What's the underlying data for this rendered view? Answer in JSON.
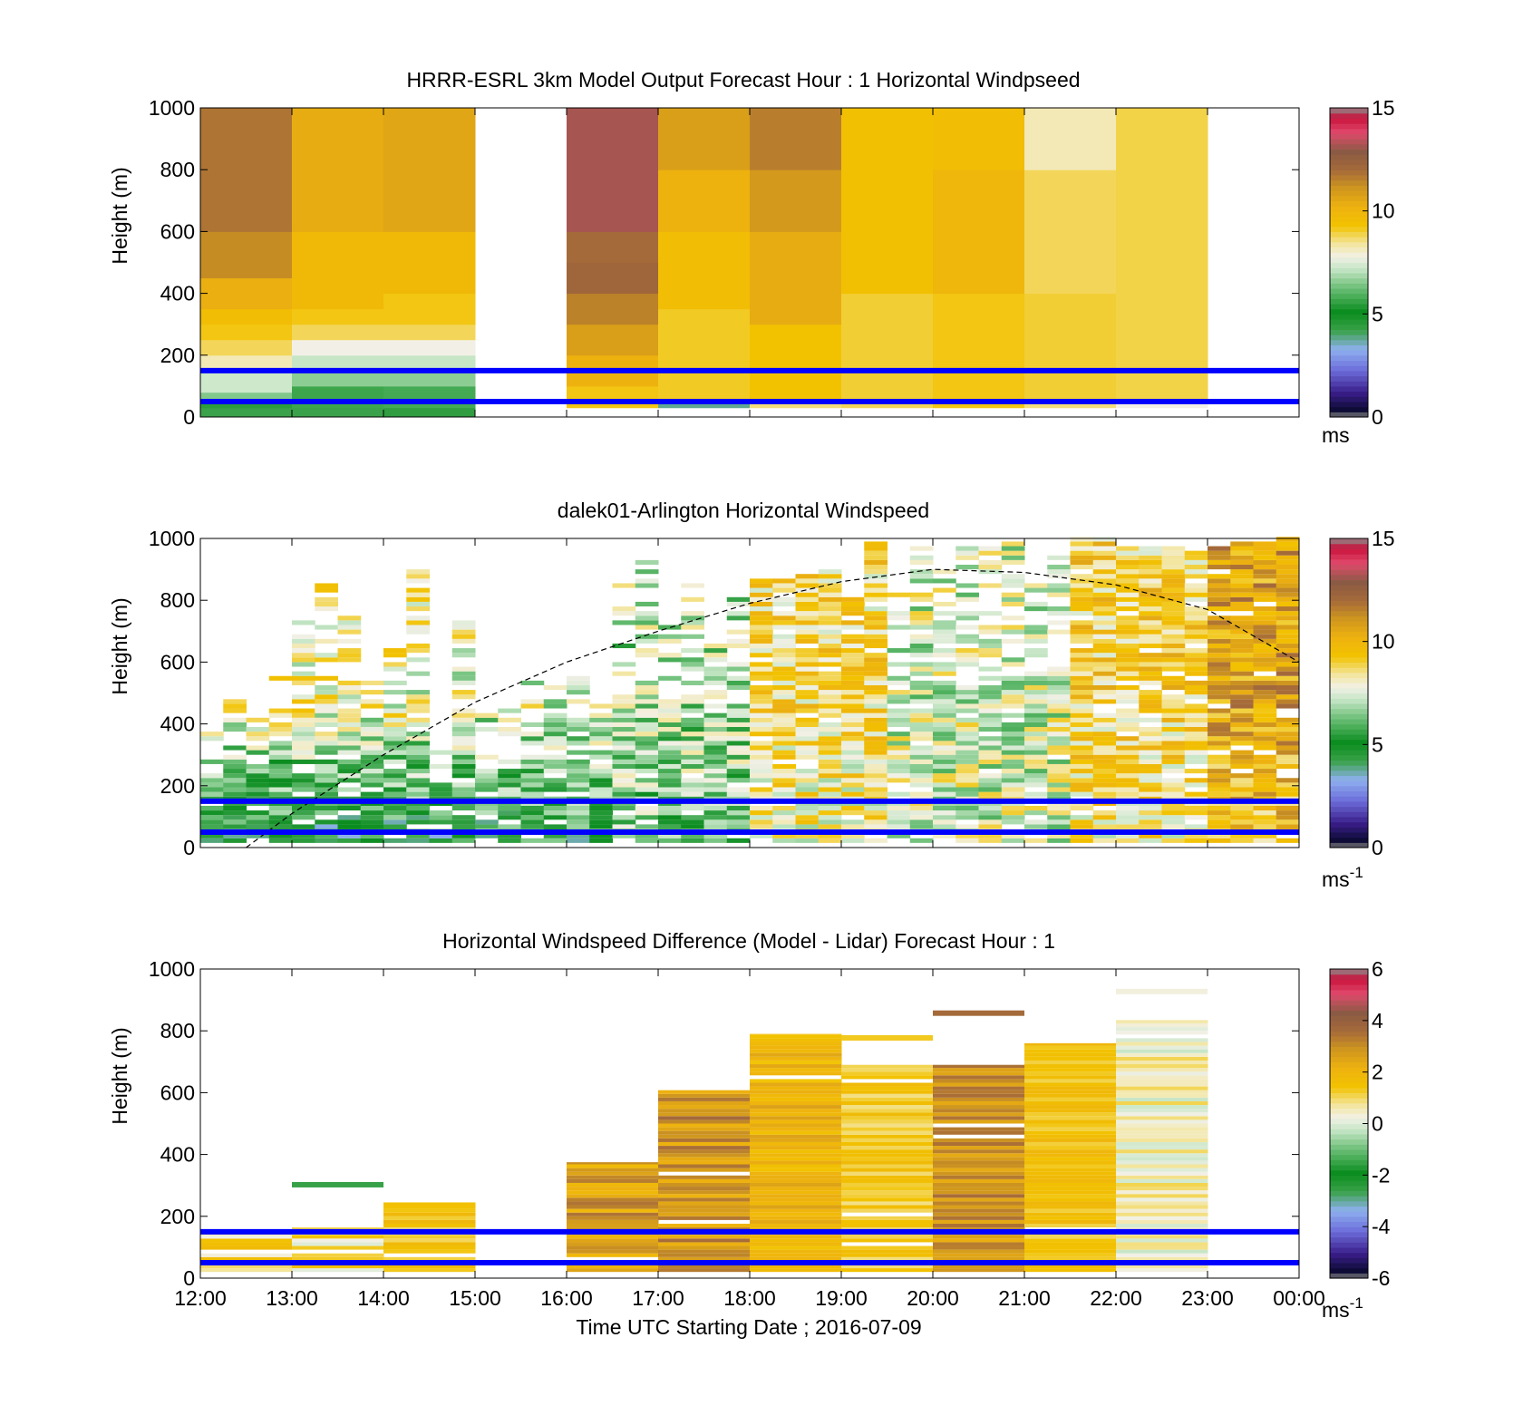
{
  "panels": [
    {
      "title": "HRRR-ESRL 3km Model Output   Forecast Hour : 1 Horizontal Windpseed",
      "ylabel": "Height (m)",
      "colorbar_unit": "ms",
      "colorbar_unit_sup": ""
    },
    {
      "title": "dalek01-Arlington  Horizontal Windspeed",
      "ylabel": "Height (m)",
      "colorbar_unit": "ms",
      "colorbar_unit_sup": "-1"
    },
    {
      "title": "Horizontal Windspeed Difference (Model - Lidar) Forecast Hour : 1",
      "ylabel": "Height (m)",
      "colorbar_unit": "ms",
      "colorbar_unit_sup": "-1"
    }
  ],
  "xlabel": "Time UTC  Starting Date ; 2016-07-09",
  "colors": {
    "reference_lines": "#0000ff",
    "frame": "#000000"
  },
  "chart_data": [
    {
      "type": "heatmap",
      "title": "HRRR-ESRL 3km Model Output   Forecast Hour : 1 Horizontal Windpseed",
      "ylabel": "Height (m)",
      "ylim": [
        0,
        1000
      ],
      "yticks": [
        "0",
        "200",
        "400",
        "600",
        "800",
        "1000"
      ],
      "x_hours": [
        12,
        13,
        14,
        15,
        16,
        17,
        18,
        19,
        20,
        21,
        22,
        23,
        24
      ],
      "clim": [
        0,
        15
      ],
      "cticks": [
        "0",
        "5",
        "10",
        "15"
      ],
      "reference_heights_m": [
        50,
        150
      ],
      "columns": [
        {
          "start_hour": 12,
          "bands": [
            [
              0,
              30,
              4.2
            ],
            [
              30,
              60,
              5.5
            ],
            [
              60,
              80,
              6.5
            ],
            [
              80,
              150,
              7.3
            ],
            [
              150,
              200,
              8.2
            ],
            [
              200,
              250,
              8.8
            ],
            [
              250,
              300,
              9.2
            ],
            [
              300,
              350,
              9.6
            ],
            [
              350,
              450,
              10.3
            ],
            [
              450,
              600,
              11.3
            ],
            [
              600,
              1000,
              11.8
            ]
          ]
        },
        {
          "start_hour": 13,
          "bands": [
            [
              0,
              30,
              4.2
            ],
            [
              30,
              100,
              5.7
            ],
            [
              100,
              150,
              6.6
            ],
            [
              150,
              200,
              7.2
            ],
            [
              200,
              250,
              7.8
            ],
            [
              250,
              300,
              8.8
            ],
            [
              300,
              350,
              9.2
            ],
            [
              350,
              600,
              9.8
            ],
            [
              600,
              1000,
              10.4
            ]
          ]
        },
        {
          "start_hour": 14,
          "bands": [
            [
              0,
              30,
              4.4
            ],
            [
              30,
              100,
              5.8
            ],
            [
              100,
              150,
              6.6
            ],
            [
              150,
              200,
              7.2
            ],
            [
              200,
              250,
              7.8
            ],
            [
              250,
              300,
              8.8
            ],
            [
              300,
              400,
              9.2
            ],
            [
              400,
              600,
              9.8
            ],
            [
              600,
              1000,
              10.6
            ]
          ]
        },
        {
          "start_hour": 16,
          "bands": [
            [
              30,
              100,
              9.2
            ],
            [
              100,
              200,
              10.2
            ],
            [
              200,
              300,
              10.8
            ],
            [
              300,
              400,
              11.5
            ],
            [
              400,
              500,
              12.2
            ],
            [
              500,
              600,
              12.0
            ],
            [
              600,
              1000,
              13.2
            ]
          ]
        },
        {
          "start_hour": 17,
          "bands": [
            [
              30,
              60,
              3.8
            ],
            [
              60,
              350,
              9.1
            ],
            [
              350,
              600,
              9.6
            ],
            [
              600,
              800,
              10.2
            ],
            [
              800,
              1000,
              10.8
            ]
          ]
        },
        {
          "start_hour": 18,
          "bands": [
            [
              30,
              60,
              8.6
            ],
            [
              60,
              300,
              9.3
            ],
            [
              300,
              600,
              10.4
            ],
            [
              600,
              800,
              11.0
            ],
            [
              800,
              1000,
              11.6
            ]
          ]
        },
        {
          "start_hour": 19,
          "bands": [
            [
              30,
              60,
              8.8
            ],
            [
              60,
              400,
              9.0
            ],
            [
              400,
              1000,
              9.4
            ]
          ]
        },
        {
          "start_hour": 20,
          "bands": [
            [
              30,
              400,
              9.2
            ],
            [
              400,
              800,
              10.0
            ],
            [
              800,
              1000,
              9.6
            ]
          ]
        },
        {
          "start_hour": 21,
          "bands": [
            [
              30,
              60,
              8.6
            ],
            [
              60,
              400,
              9.0
            ],
            [
              400,
              800,
              8.8
            ],
            [
              800,
              1000,
              8.2
            ]
          ]
        },
        {
          "start_hour": 22,
          "bands": [
            [
              30,
              60,
              7.8
            ],
            [
              60,
              1000,
              8.9
            ]
          ]
        }
      ]
    },
    {
      "type": "heatmap",
      "title": "dalek01-Arlington  Horizontal Windspeed",
      "ylabel": "Height (m)",
      "ylim": [
        0,
        1000
      ],
      "yticks": [
        "0",
        "200",
        "400",
        "600",
        "800",
        "1000"
      ],
      "x_hours": [
        12,
        13,
        14,
        15,
        16,
        17,
        18,
        19,
        20,
        21,
        22,
        23,
        24
      ],
      "clim": [
        0,
        15
      ],
      "cticks": [
        "0",
        "5",
        "10",
        "15"
      ],
      "reference_heights_m": [
        50,
        150
      ],
      "profile_step_hours": 0.25,
      "profile_bin_m": 15,
      "regimes": [
        {
          "from_hour": 12.0,
          "to_hour": 15.0,
          "top_m": [
            380,
            900
          ],
          "near_surface_speed": 4.5,
          "aloft_speed": 8.0
        },
        {
          "from_hour": 15.0,
          "to_hour": 16.5,
          "top_m": [
            350,
            600
          ],
          "near_surface_speed": 5.0,
          "aloft_speed": 7.5
        },
        {
          "from_hour": 16.5,
          "to_hour": 18.0,
          "top_m": [
            650,
            950
          ],
          "near_surface_speed": 6.5,
          "aloft_speed": 7.0
        },
        {
          "from_hour": 18.0,
          "to_hour": 19.5,
          "top_m": [
            800,
            1000
          ],
          "near_surface_speed": 8.0,
          "aloft_speed": 8.8
        },
        {
          "from_hour": 19.5,
          "to_hour": 21.5,
          "top_m": [
            900,
            1000
          ],
          "near_surface_speed": 7.5,
          "aloft_speed": 7.5
        },
        {
          "from_hour": 21.5,
          "to_hour": 23.0,
          "top_m": [
            950,
            1000
          ],
          "near_surface_speed": 8.5,
          "aloft_speed": 9.0
        },
        {
          "from_hour": 23.0,
          "to_hour": 23.9,
          "top_m": [
            980,
            1000
          ],
          "near_surface_speed": 9.5,
          "aloft_speed": 10.5
        }
      ],
      "boundary_layer_curve": {
        "style": "dashed",
        "x_hours": [
          12.5,
          13.0,
          14.0,
          15.0,
          16.0,
          17.0,
          18.0,
          19.0,
          20.0,
          21.0,
          22.0,
          23.0,
          24.0
        ],
        "height_m": [
          0,
          110,
          300,
          470,
          600,
          700,
          790,
          860,
          900,
          890,
          850,
          770,
          600
        ]
      }
    },
    {
      "type": "heatmap",
      "title": "Horizontal Windspeed Difference (Model - Lidar) Forecast Hour : 1",
      "ylabel": "Height (m)",
      "xlabel": "Time UTC  Starting Date ; 2016-07-09",
      "ylim": [
        0,
        1000
      ],
      "yticks": [
        "0",
        "200",
        "400",
        "600",
        "800",
        "1000"
      ],
      "x_hours": [
        12,
        13,
        14,
        15,
        16,
        17,
        18,
        19,
        20,
        21,
        22,
        23,
        24
      ],
      "xticks": [
        "12:00",
        "13:00",
        "14:00",
        "15:00",
        "16:00",
        "17:00",
        "18:00",
        "19:00",
        "20:00",
        "21:00",
        "22:00",
        "23:00",
        "00:00"
      ],
      "clim": [
        -6,
        6
      ],
      "cticks": [
        "-6",
        "-4",
        "-2",
        "0",
        "2",
        "4",
        "6"
      ],
      "reference_heights_m": [
        50,
        150
      ],
      "columns": [
        {
          "start_hour": 12,
          "top_m": 160,
          "mean_diff": 1.0,
          "spread": 0.8
        },
        {
          "start_hour": 13,
          "top_m": 180,
          "mean_diff": 0.8,
          "spread": 0.9
        },
        {
          "start_hour": 14,
          "top_m": 245,
          "mean_diff": 1.4,
          "spread": 0.6
        },
        {
          "start_hour": 16,
          "top_m": 375,
          "mean_diff": 2.6,
          "spread": 0.9
        },
        {
          "start_hour": 17,
          "top_m": 630,
          "mean_diff": 2.8,
          "spread": 0.9
        },
        {
          "start_hour": 18,
          "top_m": 790,
          "mean_diff": 2.0,
          "spread": 0.6
        },
        {
          "start_hour": 19,
          "top_m": 690,
          "mean_diff": 1.3,
          "spread": 0.5
        },
        {
          "start_hour": 20,
          "top_m": 690,
          "mean_diff": 2.9,
          "spread": 0.7
        },
        {
          "start_hour": 21,
          "top_m": 760,
          "mean_diff": 1.5,
          "spread": 0.5
        },
        {
          "start_hour": 22,
          "top_m": 835,
          "mean_diff": 0.4,
          "spread": 0.7
        }
      ],
      "isolated_strips": [
        {
          "start_hour": 13,
          "height_m": 305,
          "diff": -2.6
        },
        {
          "start_hour": 19,
          "height_m": 780,
          "diff": 1.3
        },
        {
          "start_hour": 20,
          "height_m": 860,
          "diff": 3.6
        },
        {
          "start_hour": 22,
          "height_m": 930,
          "diff": 0.3
        }
      ]
    }
  ]
}
